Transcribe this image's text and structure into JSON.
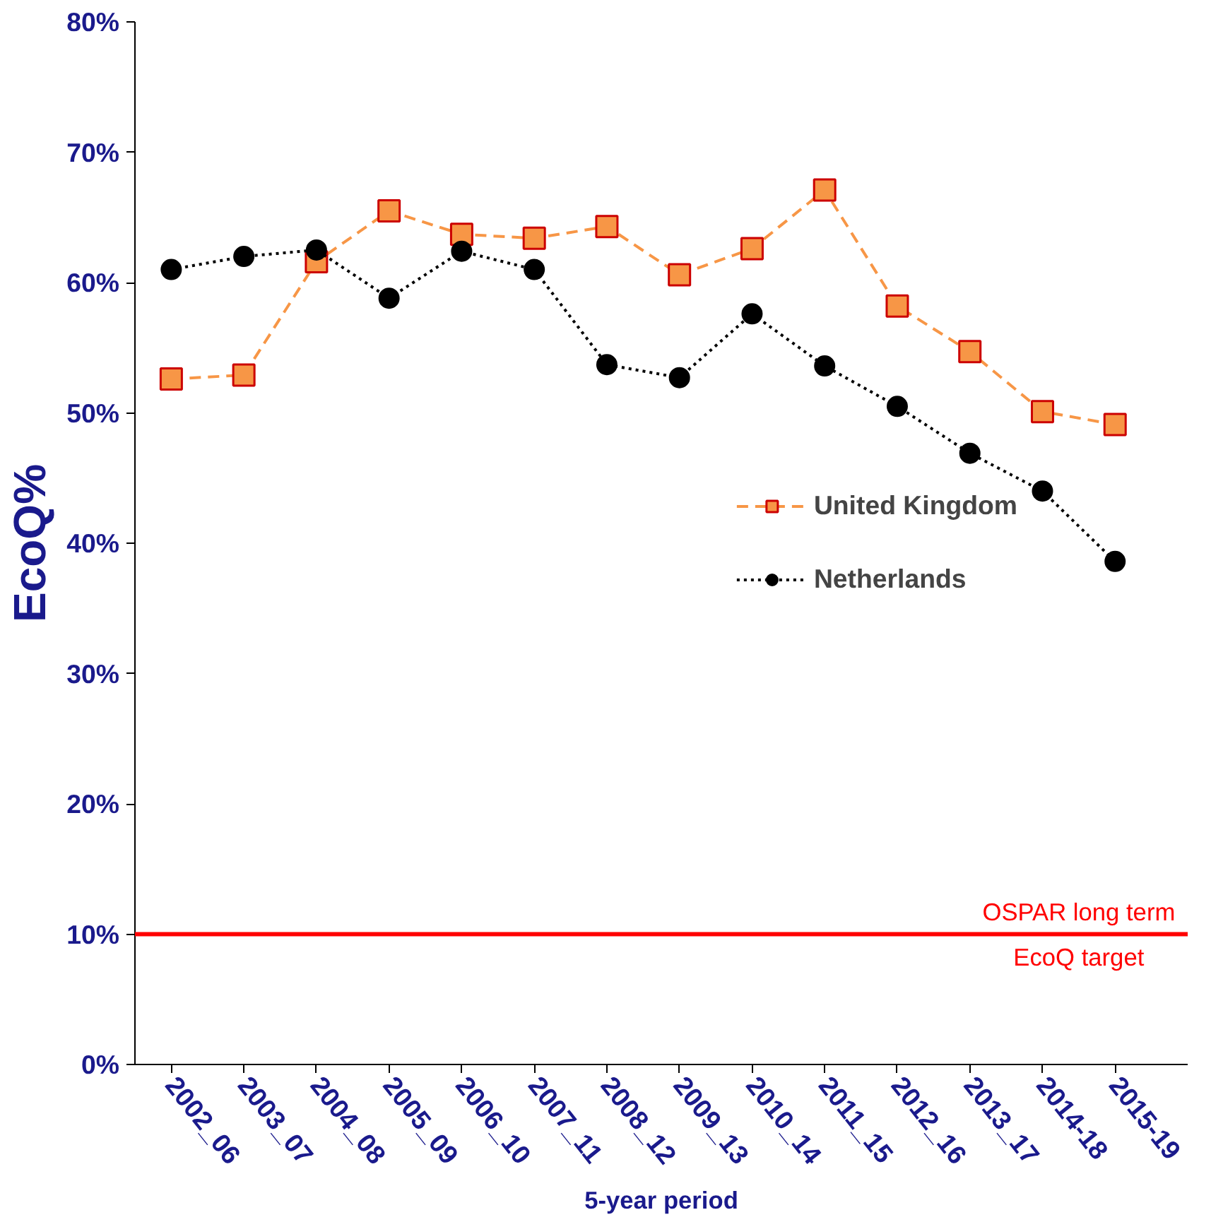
{
  "chart_data": {
    "type": "line",
    "xlabel": "5-year period",
    "ylabel": "EcoQ%",
    "categories": [
      "2002_06",
      "2003_07",
      "2004_08",
      "2005_09",
      "2006_10",
      "2007_11",
      "2008_12",
      "2009_13",
      "2010_14",
      "2011_15",
      "2012_16",
      "2013_17",
      "2014-18",
      "2015-19"
    ],
    "series": [
      {
        "name": "United Kingdom",
        "color": "#f79646",
        "marker": "square",
        "line_style": "dashed",
        "values": [
          52.6,
          52.9,
          61.6,
          65.5,
          63.7,
          63.4,
          64.3,
          60.6,
          62.6,
          67.1,
          58.2,
          54.7,
          50.1,
          49.1
        ]
      },
      {
        "name": "Netherlands",
        "color": "#000000",
        "marker": "circle",
        "line_style": "dotted",
        "values": [
          61.0,
          62.0,
          62.5,
          58.8,
          62.4,
          61.0,
          53.7,
          52.7,
          57.6,
          53.6,
          50.5,
          46.9,
          44.0,
          38.6
        ]
      }
    ],
    "ylim": [
      0,
      80
    ],
    "yticks": [
      {
        "value": 0,
        "label": "0%"
      },
      {
        "value": 10,
        "label": "10%"
      },
      {
        "value": 20,
        "label": "20%"
      },
      {
        "value": 30,
        "label": "30%"
      },
      {
        "value": 40,
        "label": "40%"
      },
      {
        "value": 50,
        "label": "50%"
      },
      {
        "value": 60,
        "label": "60%"
      },
      {
        "value": 70,
        "label": "70%"
      },
      {
        "value": 80,
        "label": "80%"
      }
    ],
    "ref_lines": [
      {
        "axis": "y",
        "value": 10,
        "label": "OSPAR long term\nEcoQ target",
        "color": "#ff0000",
        "line_style": "solid"
      }
    ],
    "grid": false,
    "legend": "right"
  }
}
